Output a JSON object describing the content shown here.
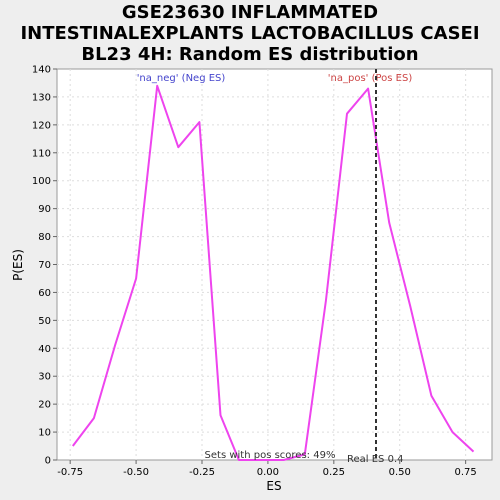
{
  "chart_data": {
    "type": "line",
    "title_lines": [
      "GSE23630 INFLAMMATED",
      "INTESTINALEXPLANTS LACTOBACILLUS CASEI",
      "BL23 4H: Random ES distribution"
    ],
    "xlabel": "ES",
    "ylabel": "P(ES)",
    "xlim": [
      -0.8,
      0.85
    ],
    "ylim": [
      0,
      140
    ],
    "x_ticks": [
      -0.75,
      -0.5,
      -0.25,
      0.0,
      0.25,
      0.5,
      0.75
    ],
    "x_tick_labels": [
      "-0.75",
      "-0.50",
      "-0.25",
      "0.00",
      "0.25",
      "0.50",
      "0.75"
    ],
    "y_ticks": [
      0,
      10,
      20,
      30,
      40,
      50,
      60,
      70,
      80,
      90,
      100,
      110,
      120,
      130,
      140
    ],
    "y_tick_labels": [
      "0",
      "10",
      "20",
      "30",
      "40",
      "50",
      "60",
      "70",
      "80",
      "90",
      "100",
      "110",
      "120",
      "130",
      "140"
    ],
    "grid": true,
    "series": [
      {
        "color": "#ee44ee",
        "x": [
          -0.74,
          -0.66,
          -0.58,
          -0.5,
          -0.42,
          -0.34,
          -0.26,
          -0.18,
          -0.11,
          -0.03,
          0.06,
          0.14,
          0.22,
          0.3,
          0.38,
          0.46,
          0.54,
          0.62,
          0.7,
          0.78
        ],
        "y": [
          5,
          15,
          41,
          65,
          134,
          112,
          121,
          16,
          0,
          0,
          0,
          2,
          57,
          124,
          133,
          85,
          55,
          23,
          10,
          3
        ]
      }
    ],
    "legend_neg": "'na_neg' (Neg ES)",
    "legend_pos": "'na_pos' (Pos ES)",
    "legend_neg_color": "#4444cc",
    "legend_pos_color": "#cc4444",
    "real_es": 0.41,
    "real_es_label": "Real ES 0.4",
    "sets_pos_label": "Sets with pos scores: 49%",
    "line_color": "#ee44ee",
    "plot_bg": "#ffffff",
    "page_bg": "#eeeeee"
  }
}
